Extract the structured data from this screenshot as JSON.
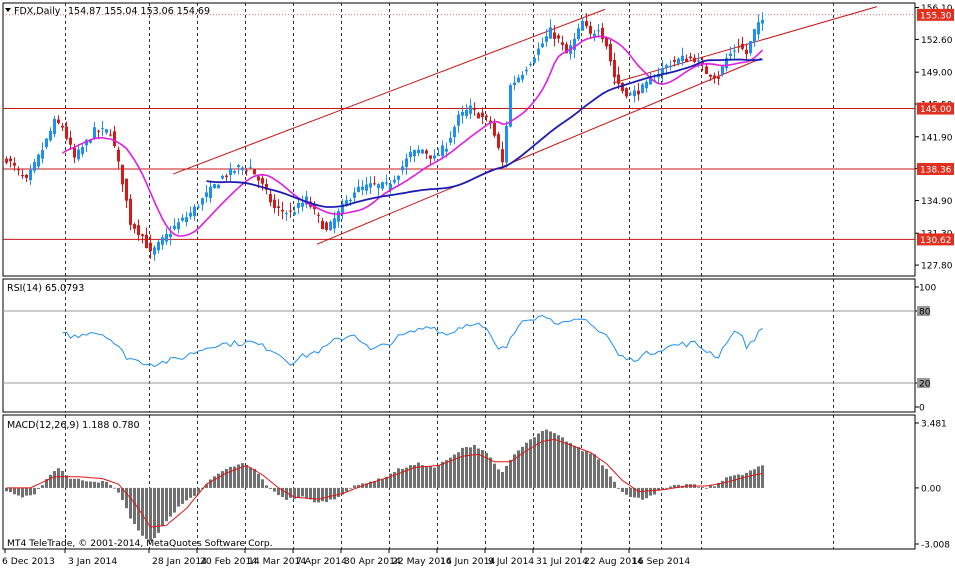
{
  "header": {
    "symbol_label": "FDX,Daily",
    "ohlc_label": "154.87 155.04 153.06 154.69"
  },
  "rsi_label": "RSI(14) 65.0793",
  "macd_label": "MACD(12,26,9) 1.188 0.780",
  "copyright": "MT4 TeleTrade, © 2001-2014, MetaQuotes Software Corp.",
  "colors": {
    "bull": "#1f8ff5",
    "bear": "#d11a1a",
    "ma_fast": "#e01ee0",
    "ma_slow": "#1c1cb4",
    "level_line": "#c81414",
    "rsi": "#1f8ff5",
    "macd_hist": "#707070",
    "macd_signal": "#e01414",
    "price_tag": "#e03020"
  },
  "chart_data": [
    {
      "type": "candlestick",
      "pane": "price",
      "ylim": [
        126.6,
        156.6
      ],
      "y_ticks": [
        "156.10",
        "152.60",
        "149.00",
        "145.50",
        "141.90",
        "138.40",
        "134.90",
        "131.30",
        "127.80"
      ],
      "x_ticks": [
        "6 Dec 2013",
        "3 Jan 2014",
        "28 Jan 2014",
        "20 Feb 2014",
        "14 Mar 2014",
        "7 Apr 2014",
        "30 Apr 2014",
        "22 May 2014",
        "16 Jun 2014",
        "9 Jul 2014",
        "31 Jul 2014",
        "22 Aug 2014",
        "16 Sep 2014"
      ],
      "waypoints": [
        [
          0,
          139.5
        ],
        [
          5,
          137.0
        ],
        [
          9,
          140.5
        ],
        [
          12,
          143.5
        ],
        [
          14,
          143.0
        ],
        [
          17,
          139.5
        ],
        [
          22,
          142.5
        ],
        [
          26,
          142.5
        ],
        [
          29,
          137.0
        ],
        [
          31,
          132.5
        ],
        [
          34,
          131.0
        ],
        [
          36,
          129.0
        ],
        [
          39,
          130.5
        ],
        [
          42,
          132.0
        ],
        [
          46,
          133.5
        ],
        [
          50,
          135.5
        ],
        [
          54,
          137.5
        ],
        [
          58,
          138.5
        ],
        [
          61,
          138.5
        ],
        [
          64,
          136.5
        ],
        [
          67,
          134.0
        ],
        [
          71,
          133.5
        ],
        [
          75,
          135.0
        ],
        [
          80,
          131.5
        ],
        [
          83,
          133.5
        ],
        [
          87,
          136.0
        ],
        [
          91,
          136.5
        ],
        [
          95,
          136.5
        ],
        [
          98,
          138.0
        ],
        [
          101,
          140.0
        ],
        [
          104,
          140.5
        ],
        [
          107,
          139.5
        ],
        [
          110,
          141.0
        ],
        [
          113,
          144.0
        ],
        [
          116,
          145.0
        ],
        [
          119,
          144.0
        ],
        [
          121,
          143.5
        ],
        [
          123,
          140.5
        ],
        [
          124,
          139.0
        ],
        [
          126,
          147.5
        ],
        [
          129,
          149.0
        ],
        [
          133,
          151.5
        ],
        [
          136,
          153.5
        ],
        [
          138,
          152.5
        ],
        [
          140,
          151.0
        ],
        [
          142,
          152.5
        ],
        [
          144,
          154.5
        ],
        [
          146,
          153.0
        ],
        [
          148,
          154.0
        ],
        [
          150,
          152.0
        ],
        [
          152,
          148.5
        ],
        [
          154,
          147.0
        ],
        [
          156,
          146.5
        ],
        [
          158,
          147.0
        ],
        [
          160,
          147.5
        ],
        [
          163,
          149.0
        ],
        [
          166,
          150.0
        ],
        [
          169,
          150.5
        ],
        [
          172,
          150.5
        ],
        [
          175,
          149.0
        ],
        [
          178,
          148.5
        ],
        [
          180,
          150.5
        ],
        [
          183,
          152.0
        ],
        [
          185,
          151.0
        ],
        [
          187,
          153.5
        ],
        [
          189,
          154.7
        ]
      ],
      "ma_fast_period": 13,
      "ma_slow_period": 50,
      "ma_slow_start": 50,
      "levels": [
        {
          "label": "145.00",
          "value": 145.0
        },
        {
          "label": "138.36",
          "value": 138.36
        },
        {
          "label": "130.62",
          "value": 130.62
        }
      ],
      "channel_lines": [
        {
          "from": [
            42,
            137.8
          ],
          "to": [
            150,
            155.9
          ]
        },
        {
          "from": [
            78,
            130.1
          ],
          "to": [
            189,
            150.5
          ]
        },
        {
          "from": [
            152,
            147.8
          ],
          "to": [
            218,
            156.2
          ]
        }
      ],
      "current_price": "155.30",
      "current_value": 155.3,
      "hidden_tick_labels": [
        "154.65",
        "145.50",
        "131.30"
      ]
    },
    {
      "type": "line",
      "pane": "rsi",
      "ylim": [
        0,
        100
      ],
      "y_ticks": [
        "100",
        "80",
        "20",
        "0"
      ],
      "levels": [
        80,
        20
      ],
      "waypoints": [
        [
          14,
          64
        ],
        [
          16,
          58
        ],
        [
          21,
          63
        ],
        [
          25,
          60
        ],
        [
          30,
          42
        ],
        [
          33,
          38
        ],
        [
          37,
          36
        ],
        [
          43,
          40
        ],
        [
          48,
          47
        ],
        [
          52,
          52
        ],
        [
          57,
          53
        ],
        [
          61,
          54
        ],
        [
          67,
          47
        ],
        [
          71,
          37
        ],
        [
          74,
          42
        ],
        [
          79,
          48
        ],
        [
          82,
          55
        ],
        [
          87,
          61
        ],
        [
          91,
          47
        ],
        [
          95,
          52
        ],
        [
          98,
          58
        ],
        [
          102,
          63
        ],
        [
          106,
          68
        ],
        [
          110,
          60
        ],
        [
          113,
          66
        ],
        [
          117,
          71
        ],
        [
          120,
          64
        ],
        [
          123,
          47
        ],
        [
          125,
          50
        ],
        [
          129,
          74
        ],
        [
          133,
          75
        ],
        [
          136,
          76
        ],
        [
          138,
          68
        ],
        [
          141,
          70
        ],
        [
          144,
          73
        ],
        [
          146,
          71
        ],
        [
          148,
          63
        ],
        [
          150,
          60
        ],
        [
          153,
          43
        ],
        [
          156,
          39
        ],
        [
          160,
          44
        ],
        [
          164,
          49
        ],
        [
          168,
          52
        ],
        [
          172,
          53
        ],
        [
          175,
          47
        ],
        [
          178,
          42
        ],
        [
          180,
          55
        ],
        [
          183,
          64
        ],
        [
          185,
          50
        ],
        [
          189,
          65
        ]
      ]
    },
    {
      "type": "bar",
      "pane": "macd",
      "ylim": [
        -3.008,
        3.481
      ],
      "y_ticks": [
        "3.481",
        "0.00",
        "-3.008"
      ],
      "waypoints": [
        [
          0,
          -0.15
        ],
        [
          4,
          -0.5
        ],
        [
          7,
          -0.4
        ],
        [
          10,
          0.5
        ],
        [
          13,
          1.1
        ],
        [
          16,
          0.5
        ],
        [
          20,
          0.4
        ],
        [
          25,
          0.3
        ],
        [
          28,
          -0.2
        ],
        [
          31,
          -1.6
        ],
        [
          34,
          -2.6
        ],
        [
          36,
          -2.9
        ],
        [
          39,
          -2.1
        ],
        [
          43,
          -1.0
        ],
        [
          47,
          -0.4
        ],
        [
          52,
          0.6
        ],
        [
          56,
          1.1
        ],
        [
          59,
          1.3
        ],
        [
          62,
          1.0
        ],
        [
          66,
          -0.1
        ],
        [
          70,
          -0.6
        ],
        [
          74,
          -0.5
        ],
        [
          78,
          -0.8
        ],
        [
          82,
          -0.6
        ],
        [
          86,
          0.0
        ],
        [
          90,
          0.3
        ],
        [
          94,
          0.5
        ],
        [
          98,
          1.0
        ],
        [
          103,
          1.3
        ],
        [
          107,
          1.1
        ],
        [
          111,
          1.6
        ],
        [
          114,
          2.1
        ],
        [
          117,
          2.3
        ],
        [
          120,
          1.9
        ],
        [
          122,
          1.3
        ],
        [
          124,
          0.8
        ],
        [
          127,
          1.8
        ],
        [
          130,
          2.4
        ],
        [
          133,
          2.9
        ],
        [
          135,
          3.1
        ],
        [
          138,
          2.8
        ],
        [
          141,
          2.4
        ],
        [
          144,
          2.0
        ],
        [
          147,
          1.8
        ],
        [
          150,
          1.0
        ],
        [
          153,
          0.0
        ],
        [
          156,
          -0.5
        ],
        [
          159,
          -0.6
        ],
        [
          163,
          -0.2
        ],
        [
          167,
          0.1
        ],
        [
          171,
          0.2
        ],
        [
          174,
          0.0
        ],
        [
          177,
          0.1
        ],
        [
          180,
          0.6
        ],
        [
          184,
          0.7
        ],
        [
          187,
          1.0
        ],
        [
          189,
          1.19
        ]
      ],
      "signal_waypoints": [
        [
          0,
          0.0
        ],
        [
          6,
          0.0
        ],
        [
          12,
          0.6
        ],
        [
          18,
          0.6
        ],
        [
          24,
          0.5
        ],
        [
          28,
          0.2
        ],
        [
          32,
          -0.8
        ],
        [
          36,
          -2.1
        ],
        [
          40,
          -2.0
        ],
        [
          45,
          -1.1
        ],
        [
          50,
          0.2
        ],
        [
          55,
          0.8
        ],
        [
          60,
          1.2
        ],
        [
          64,
          0.7
        ],
        [
          68,
          0.0
        ],
        [
          72,
          -0.5
        ],
        [
          78,
          -0.6
        ],
        [
          84,
          -0.3
        ],
        [
          90,
          0.2
        ],
        [
          96,
          0.6
        ],
        [
          102,
          1.1
        ],
        [
          108,
          1.2
        ],
        [
          114,
          1.7
        ],
        [
          118,
          1.8
        ],
        [
          122,
          1.4
        ],
        [
          126,
          1.4
        ],
        [
          130,
          2.0
        ],
        [
          134,
          2.5
        ],
        [
          137,
          2.6
        ],
        [
          141,
          2.3
        ],
        [
          146,
          1.9
        ],
        [
          150,
          1.3
        ],
        [
          154,
          0.4
        ],
        [
          158,
          -0.2
        ],
        [
          164,
          -0.1
        ],
        [
          170,
          0.1
        ],
        [
          175,
          0.1
        ],
        [
          180,
          0.3
        ],
        [
          185,
          0.6
        ],
        [
          189,
          0.78
        ]
      ]
    }
  ]
}
